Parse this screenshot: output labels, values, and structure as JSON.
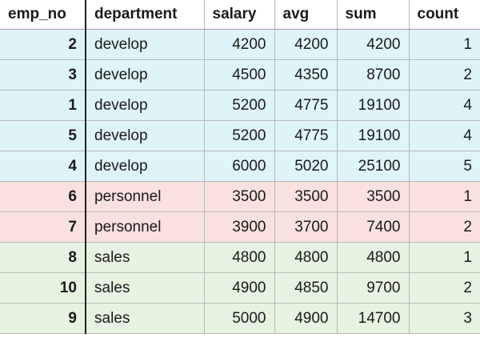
{
  "columns": [
    "emp_no",
    "department",
    "salary",
    "avg",
    "sum",
    "count"
  ],
  "department_colors": {
    "develop": "#dff4f8",
    "personnel": "#f8e1de",
    "sales": "#e6f3e1"
  },
  "rows": [
    {
      "emp_no": "2",
      "department": "develop",
      "salary": "4200",
      "avg": "4200",
      "sum": "4200",
      "count": "1"
    },
    {
      "emp_no": "3",
      "department": "develop",
      "salary": "4500",
      "avg": "4350",
      "sum": "8700",
      "count": "2"
    },
    {
      "emp_no": "1",
      "department": "develop",
      "salary": "5200",
      "avg": "4775",
      "sum": "19100",
      "count": "4"
    },
    {
      "emp_no": "5",
      "department": "develop",
      "salary": "5200",
      "avg": "4775",
      "sum": "19100",
      "count": "4"
    },
    {
      "emp_no": "4",
      "department": "develop",
      "salary": "6000",
      "avg": "5020",
      "sum": "25100",
      "count": "5"
    },
    {
      "emp_no": "6",
      "department": "personnel",
      "salary": "3500",
      "avg": "3500",
      "sum": "3500",
      "count": "1"
    },
    {
      "emp_no": "7",
      "department": "personnel",
      "salary": "3900",
      "avg": "3700",
      "sum": "7400",
      "count": "2"
    },
    {
      "emp_no": "8",
      "department": "sales",
      "salary": "4800",
      "avg": "4800",
      "sum": "4800",
      "count": "1"
    },
    {
      "emp_no": "10",
      "department": "sales",
      "salary": "4900",
      "avg": "4850",
      "sum": "9700",
      "count": "2"
    },
    {
      "emp_no": "9",
      "department": "sales",
      "salary": "5000",
      "avg": "4900",
      "sum": "14700",
      "count": "3"
    }
  ]
}
